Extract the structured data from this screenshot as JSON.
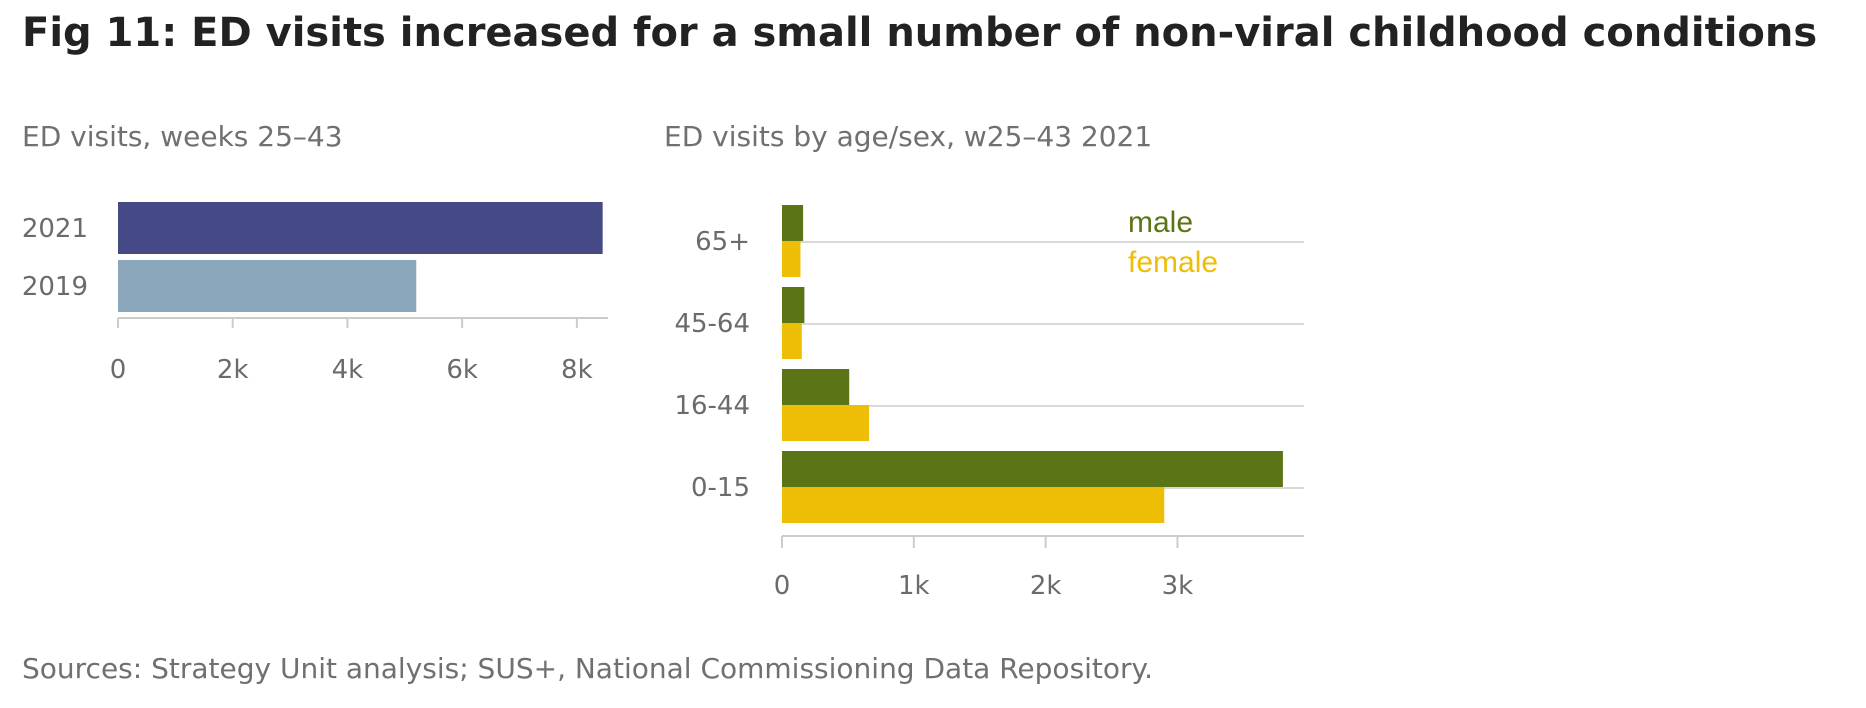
{
  "title": "Fig 11: ED visits increased for a small number of non-viral childhood conditions",
  "source": "Sources: Strategy Unit analysis; SUS+, National Commissioning Data Repository.",
  "chart_data": [
    {
      "type": "bar",
      "orientation": "horizontal",
      "title": "ED visits, weeks 25–43",
      "categories": [
        "2021",
        "2019"
      ],
      "values": [
        8450,
        5200
      ],
      "colors": [
        "#454a87",
        "#8ba7bb"
      ],
      "xlim": [
        0,
        8700
      ],
      "xticks": [
        0,
        2000,
        4000,
        6000,
        8000
      ],
      "xtick_labels": [
        "0",
        "2k",
        "4k",
        "6k",
        "8k"
      ],
      "grid": false
    },
    {
      "type": "bar",
      "orientation": "horizontal",
      "title": "ED visits by age/sex, w25–43 2021",
      "categories": [
        "65+",
        "45-64",
        "16-44",
        "0-15"
      ],
      "series": [
        {
          "name": "male",
          "color": "#5b7416",
          "values": [
            160,
            170,
            510,
            3800
          ]
        },
        {
          "name": "female",
          "color": "#eebd05",
          "values": [
            140,
            150,
            660,
            2900
          ]
        }
      ],
      "xlim": [
        0,
        3960
      ],
      "xticks": [
        0,
        1000,
        2000,
        3000
      ],
      "xtick_labels": [
        "0",
        "1k",
        "2k",
        "3k"
      ],
      "grid": true,
      "legend_position": "top-right"
    }
  ]
}
